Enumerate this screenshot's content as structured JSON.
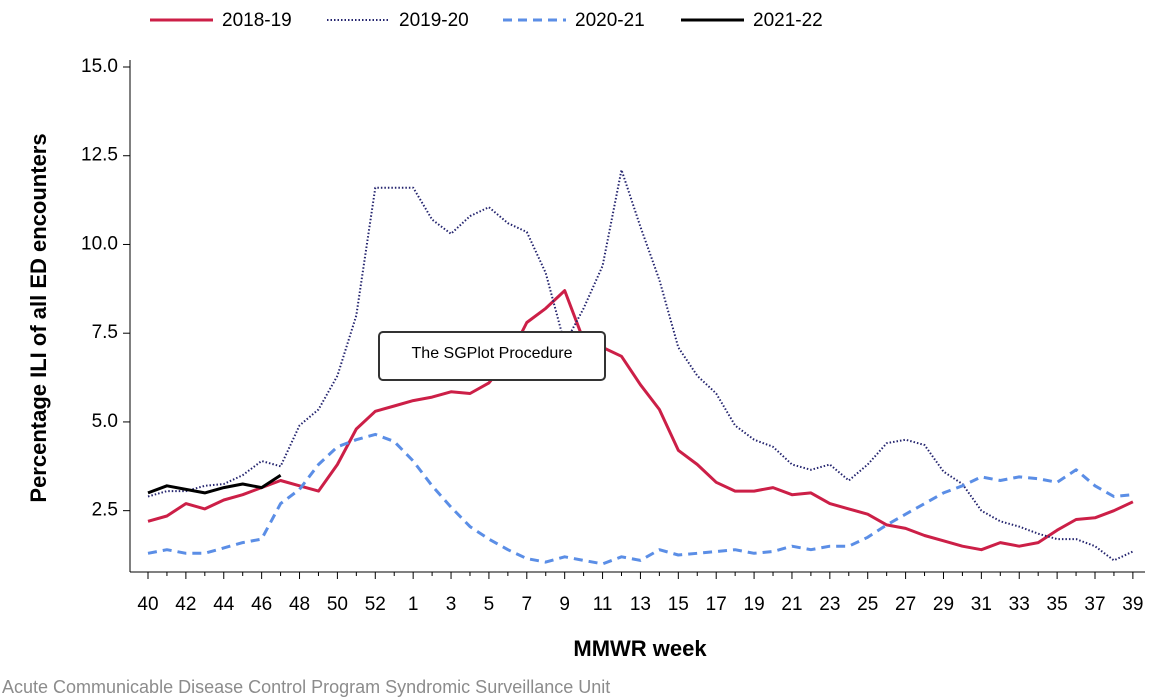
{
  "chart_data": {
    "type": "line",
    "x_label": "MMWR week",
    "y_label": "Percentage ILI of all ED encounters",
    "annotation": "The SGPlot Procedure",
    "footer": "Acute Communicable Disease Control Program Syndromic Surveillance Unit",
    "categories": [
      40,
      null,
      42,
      null,
      44,
      null,
      46,
      null,
      48,
      null,
      50,
      null,
      52,
      null,
      1,
      null,
      3,
      null,
      5,
      null,
      7,
      null,
      9,
      null,
      11,
      null,
      13,
      null,
      15,
      null,
      17,
      null,
      19,
      null,
      21,
      null,
      23,
      null,
      25,
      null,
      27,
      null,
      29,
      null,
      31,
      null,
      33,
      null,
      35,
      null,
      37,
      null,
      39
    ],
    "ylim": [
      0.8,
      15
    ],
    "yticks": [
      2.5,
      {
        "value": 5,
        "label": "5.0"
      },
      7.5,
      {
        "value": 10,
        "label": "10.0"
      },
      12.5,
      {
        "value": 15,
        "label": "15.0"
      }
    ],
    "legend": "top",
    "series": [
      {
        "name": "2018-19",
        "color": "#cc1f47",
        "dash": "solid",
        "values": [
          2.2,
          2.35,
          2.7,
          2.55,
          2.8,
          2.95,
          3.15,
          3.35,
          3.2,
          3.05,
          3.8,
          4.8,
          5.3,
          5.45,
          5.6,
          5.7,
          5.85,
          5.8,
          6.1,
          6.75,
          7.8,
          8.2,
          8.7,
          7.3,
          7.1,
          6.85,
          6.05,
          5.35,
          4.2,
          3.8,
          3.3,
          3.05,
          3.05,
          3.15,
          2.95,
          3.0,
          2.7,
          2.55,
          2.4,
          2.1,
          2.0,
          1.8,
          1.65,
          1.5,
          1.4,
          1.6,
          1.5,
          1.6,
          1.95,
          2.25,
          2.3,
          2.5,
          2.75
        ]
      },
      {
        "name": "2019-20",
        "color": "#24246e",
        "dash": "dotted",
        "values": [
          2.9,
          3.05,
          3.05,
          3.2,
          3.25,
          3.5,
          3.9,
          3.75,
          4.9,
          5.35,
          6.3,
          8.0,
          11.6,
          11.6,
          11.6,
          10.7,
          10.3,
          10.8,
          11.05,
          10.6,
          10.35,
          9.2,
          7.2,
          8.2,
          9.4,
          12.1,
          10.5,
          9.0,
          7.1,
          6.3,
          5.8,
          4.9,
          4.5,
          4.3,
          3.8,
          3.65,
          3.8,
          3.35,
          3.8,
          4.4,
          4.5,
          4.35,
          3.6,
          3.25,
          2.5,
          2.2,
          2.05,
          1.85,
          1.7,
          1.7,
          1.5,
          1.1,
          1.35
        ]
      },
      {
        "name": "2020-21",
        "color": "#5b8ee6",
        "dash": "dashed",
        "values": [
          1.3,
          1.4,
          1.3,
          1.3,
          1.45,
          1.6,
          1.7,
          2.7,
          3.1,
          3.8,
          4.3,
          4.5,
          4.65,
          4.45,
          3.9,
          3.2,
          2.6,
          2.05,
          1.7,
          1.4,
          1.15,
          1.05,
          1.2,
          1.1,
          1.0,
          1.2,
          1.1,
          1.4,
          1.25,
          1.3,
          1.35,
          1.4,
          1.3,
          1.35,
          1.5,
          1.4,
          1.5,
          1.5,
          1.75,
          2.1,
          2.4,
          2.7,
          3.0,
          3.2,
          3.45,
          3.35,
          3.45,
          3.4,
          3.3,
          3.65,
          3.2,
          2.9,
          2.95
        ]
      },
      {
        "name": "2021-22",
        "color": "#000000",
        "dash": "solid",
        "values": [
          3.0,
          3.2,
          3.1,
          3.0,
          3.15,
          3.25,
          3.15,
          3.5,
          null,
          null,
          null,
          null,
          null,
          null,
          null,
          null,
          null,
          null,
          null,
          null,
          null,
          null,
          null,
          null,
          null,
          null,
          null,
          null,
          null,
          null,
          null,
          null,
          null,
          null,
          null,
          null,
          null,
          null,
          null,
          null,
          null,
          null,
          null,
          null,
          null,
          null,
          null,
          null,
          null,
          null,
          null,
          null,
          null
        ]
      }
    ]
  }
}
